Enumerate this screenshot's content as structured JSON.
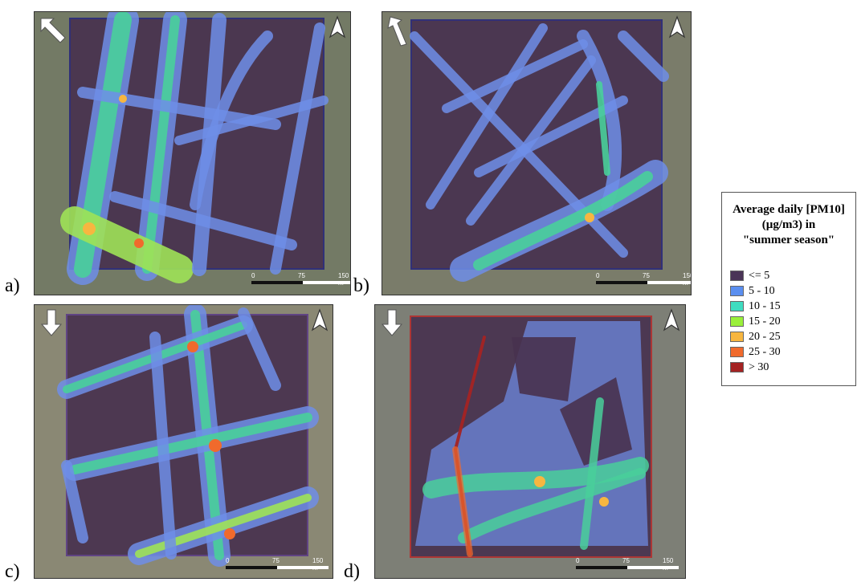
{
  "panels": [
    {
      "id": "a",
      "label": "a)"
    },
    {
      "id": "b",
      "label": "b)"
    },
    {
      "id": "c",
      "label": "c)"
    },
    {
      "id": "d",
      "label": "d)"
    }
  ],
  "scalebar": {
    "zero": "0",
    "mid": "75",
    "end": "150 m"
  },
  "legend": {
    "title_line1": "Average daily [PM10]",
    "title_line2": "(µg/m3) in",
    "title_line3": "\"summer season\"",
    "items": [
      {
        "label": "<= 5",
        "color": "#4a3457"
      },
      {
        "label": "5 - 10",
        "color": "#5b8ff0"
      },
      {
        "label": "10 - 15",
        "color": "#3fdcc0"
      },
      {
        "label": "15 - 20",
        "color": "#9af03a"
      },
      {
        "label": "20 - 25",
        "color": "#f7b640"
      },
      {
        "label": "25 - 30",
        "color": "#f06a2c"
      },
      {
        "label": "> 30",
        "color": "#a42323"
      }
    ]
  },
  "icons": {
    "wind": "wind-direction-arrow-icon",
    "north": "north-arrow-icon"
  }
}
